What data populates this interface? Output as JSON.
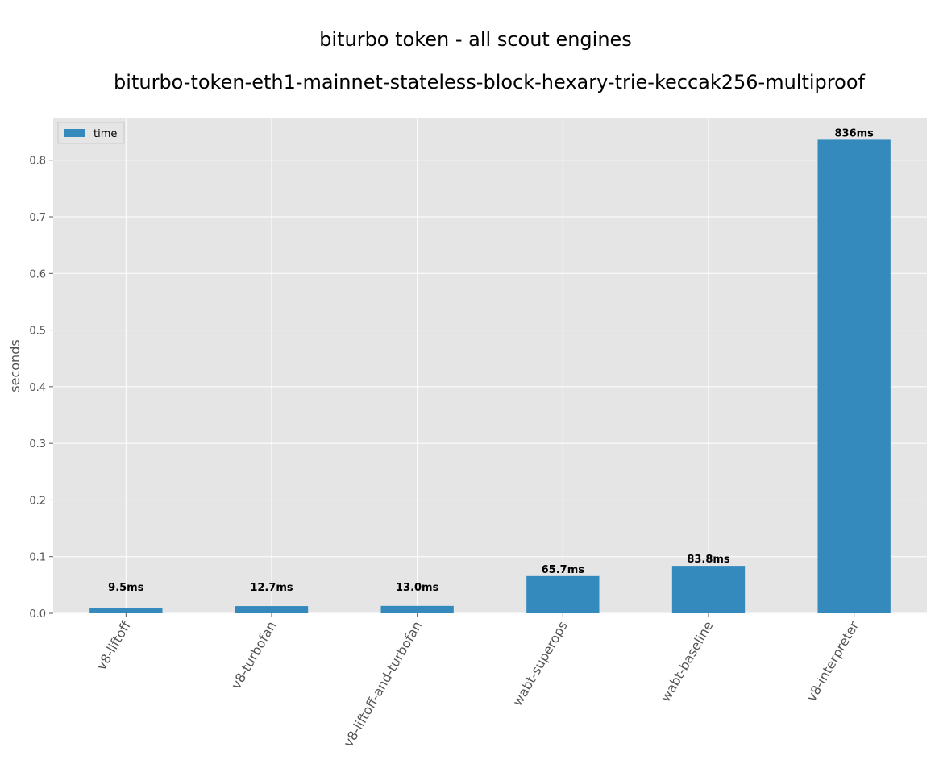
{
  "chart_data": {
    "type": "bar",
    "title": "biturbo token - all scout engines",
    "subtitle": "biturbo-token-eth1-mainnet-stateless-block-hexary-trie-keccak256-multiproof",
    "xlabel": "",
    "ylabel": "seconds",
    "ylim": [
      0,
      0.875
    ],
    "yticks": [
      "0.0",
      "0.1",
      "0.2",
      "0.3",
      "0.4",
      "0.5",
      "0.6",
      "0.7",
      "0.8"
    ],
    "grid": true,
    "legend_position": "upper-left",
    "categories": [
      "v8-liftoff",
      "v8-turbofan",
      "v8-liftoff-and-turbofan",
      "wabt-superops",
      "wabt-baseline",
      "v8-interpreter"
    ],
    "series": [
      {
        "name": "time",
        "color": "#348abd",
        "values": [
          0.0095,
          0.0127,
          0.013,
          0.0657,
          0.0838,
          0.836
        ],
        "labels": [
          "9.5ms",
          "12.7ms",
          "13.0ms",
          "65.7ms",
          "83.8ms",
          "836ms"
        ]
      }
    ],
    "plot_background": "#e5e5e5",
    "grid_color": "#ffffff"
  }
}
